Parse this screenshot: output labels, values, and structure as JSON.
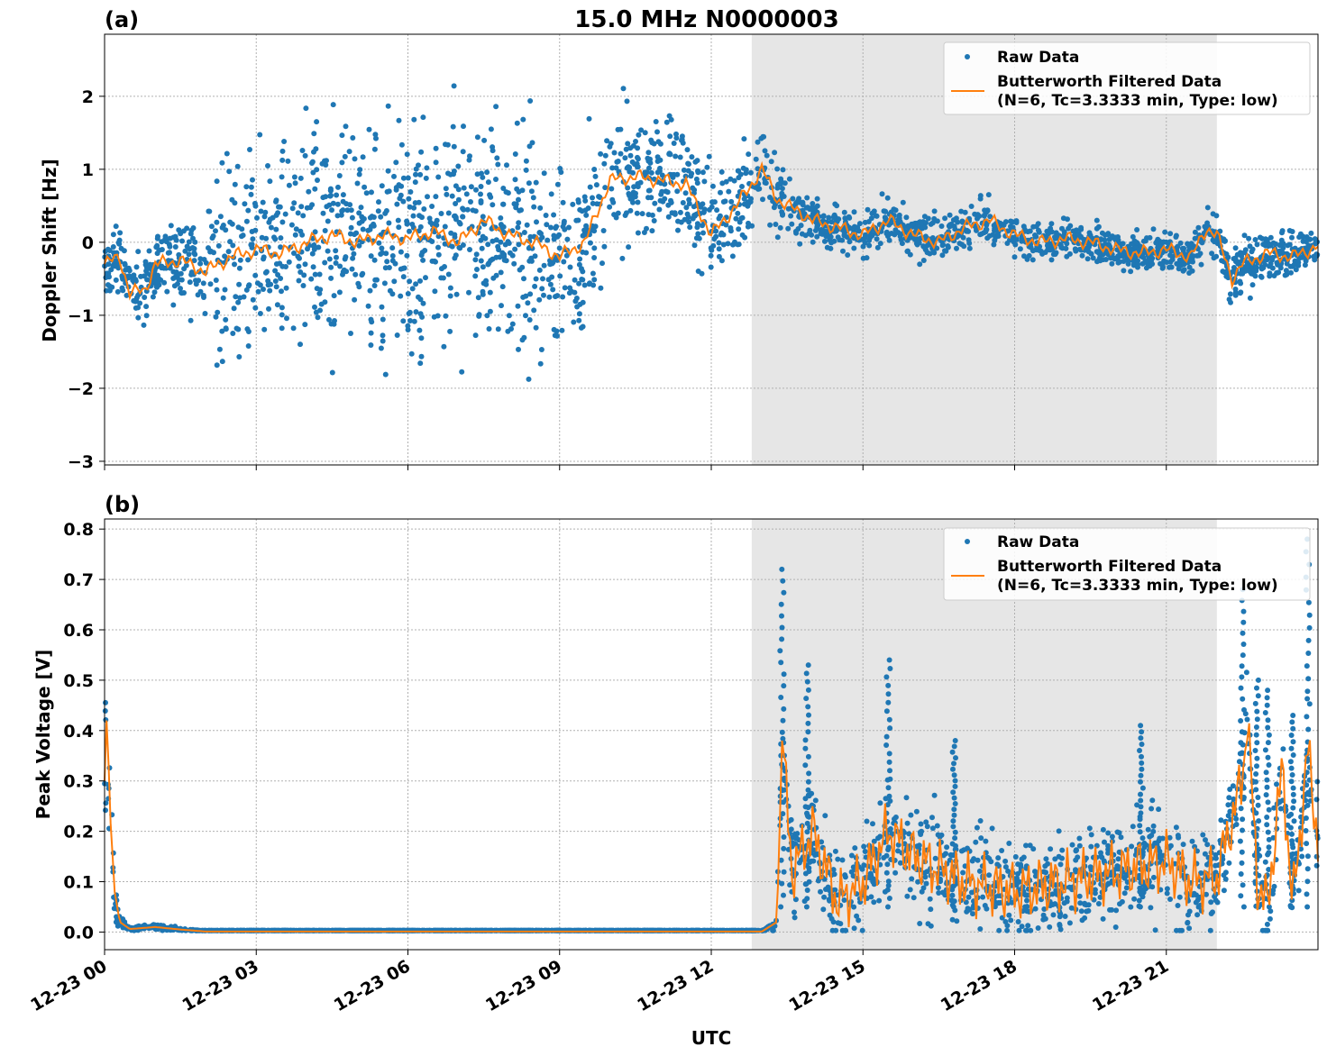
{
  "chart_data": [
    {
      "type": "scatter+line",
      "panel_label": "(a)",
      "title": "15.0 MHz N0000003",
      "ylabel": "Doppler Shift [Hz]",
      "xlabel": "",
      "x_range_hours": [
        0,
        24
      ],
      "ylim": [
        -3.05,
        2.85
      ],
      "yticks": [
        2,
        1,
        0,
        -1,
        -2,
        -3
      ],
      "ytick_labels": [
        "2",
        "1",
        "0",
        "−1",
        "−2",
        "−3"
      ],
      "shaded_interval_hours": [
        12.8,
        22.0
      ],
      "grid": true,
      "legend": {
        "position": "top-right",
        "entries": [
          "Raw Data",
          "Butterworth Filtered Data",
          "(N=6, Tc=3.3333 min, Type: low)"
        ]
      },
      "series": [
        {
          "name": "Butterworth Filtered Data",
          "style": "line",
          "color": "#ff7f0e",
          "x_hours": [
            0,
            0.3,
            0.5,
            0.8,
            1.0,
            1.5,
            2.0,
            2.5,
            3.0,
            3.5,
            4.0,
            4.5,
            5.0,
            5.5,
            6.0,
            6.5,
            7.0,
            7.5,
            8.0,
            8.5,
            9.0,
            9.5,
            10.0,
            10.5,
            11.0,
            11.5,
            12.0,
            12.5,
            12.8,
            13.0,
            13.3,
            13.5,
            13.8,
            14.0,
            14.5,
            15.0,
            15.5,
            16.0,
            16.5,
            17.0,
            17.5,
            18.0,
            18.5,
            19.0,
            19.5,
            20.0,
            20.5,
            21.0,
            21.5,
            21.8,
            22.0,
            22.3,
            22.5,
            23.0,
            23.5,
            24.0
          ],
          "y_hz": [
            -0.3,
            -0.2,
            -0.7,
            -0.65,
            -0.3,
            -0.25,
            -0.4,
            -0.2,
            -0.1,
            -0.15,
            0.0,
            0.1,
            0.0,
            0.1,
            0.05,
            0.15,
            0.0,
            0.3,
            0.1,
            0.0,
            -0.2,
            0.0,
            0.85,
            0.9,
            0.85,
            0.8,
            0.1,
            0.5,
            0.8,
            1.0,
            0.6,
            0.5,
            0.4,
            0.3,
            0.2,
            0.1,
            0.3,
            0.1,
            0.0,
            0.2,
            0.3,
            0.1,
            0.0,
            0.05,
            0.0,
            -0.1,
            -0.15,
            -0.1,
            -0.2,
            0.2,
            0.1,
            -0.5,
            -0.3,
            -0.15,
            -0.2,
            -0.05
          ]
        },
        {
          "name": "Raw Data",
          "style": "scatter",
          "color": "#1f77b4",
          "spread_x_hours": [
            0,
            1.5,
            2.5,
            5.0,
            7.0,
            9.0,
            10.0,
            11.0,
            12.0,
            12.8,
            13.5,
            14.0,
            16.0,
            18.0,
            20.0,
            22.0,
            22.5,
            24.0
          ],
          "spread_hz": [
            0.3,
            0.45,
            1.2,
            1.2,
            1.2,
            1.2,
            0.9,
            0.6,
            0.6,
            0.5,
            0.4,
            0.25,
            0.25,
            0.2,
            0.2,
            0.25,
            0.35,
            0.2
          ]
        }
      ]
    },
    {
      "type": "scatter+line",
      "panel_label": "(b)",
      "title": "",
      "ylabel": "Peak Voltage [V]",
      "xlabel": "UTC",
      "x_range_hours": [
        0,
        24
      ],
      "ylim": [
        -0.035,
        0.82
      ],
      "yticks": [
        0.0,
        0.1,
        0.2,
        0.3,
        0.4,
        0.5,
        0.6,
        0.7,
        0.8
      ],
      "ytick_labels": [
        "0.0",
        "0.1",
        "0.2",
        "0.3",
        "0.4",
        "0.5",
        "0.6",
        "0.7",
        "0.8"
      ],
      "xticks_hours": [
        0,
        3,
        6,
        9,
        12,
        15,
        18,
        21
      ],
      "xtick_labels": [
        "12-23 00",
        "12-23 03",
        "12-23 06",
        "12-23 09",
        "12-23 12",
        "12-23 15",
        "12-23 18",
        "12-23 21"
      ],
      "shaded_interval_hours": [
        12.8,
        22.0
      ],
      "grid": true,
      "legend": {
        "position": "top-right",
        "entries": [
          "Raw Data",
          "Butterworth Filtered Data",
          "(N=6, Tc=3.3333 min, Type: low)"
        ]
      },
      "series": [
        {
          "name": "Butterworth Filtered Data",
          "style": "line",
          "color": "#ff7f0e",
          "x_hours": [
            0,
            0.05,
            0.1,
            0.2,
            0.3,
            0.5,
            1.0,
            1.5,
            2.0,
            13.0,
            13.3,
            13.4,
            13.6,
            14.0,
            14.5,
            15.0,
            15.5,
            16.0,
            17.0,
            18.0,
            19.0,
            20.0,
            21.0,
            21.5,
            22.0,
            22.5,
            22.6,
            22.8,
            23.0,
            23.3,
            23.5,
            23.8,
            24.0
          ],
          "y_v": [
            0.3,
            0.45,
            0.25,
            0.08,
            0.02,
            0.006,
            0.01,
            0.005,
            0.001,
            0.001,
            0.02,
            0.38,
            0.12,
            0.2,
            0.06,
            0.1,
            0.2,
            0.15,
            0.1,
            0.08,
            0.1,
            0.12,
            0.14,
            0.1,
            0.11,
            0.3,
            0.43,
            0.1,
            0.05,
            0.33,
            0.05,
            0.36,
            0.18
          ]
        },
        {
          "name": "Raw Data",
          "style": "scatter",
          "color": "#1f77b4",
          "spikes_hours": [
            13.4,
            13.9,
            15.5,
            16.8,
            20.5,
            22.5,
            22.8,
            23.0,
            23.5,
            23.8
          ],
          "spikes_v": [
            0.72,
            0.53,
            0.54,
            0.38,
            0.41,
            0.68,
            0.5,
            0.48,
            0.43,
            0.78
          ]
        }
      ]
    }
  ]
}
